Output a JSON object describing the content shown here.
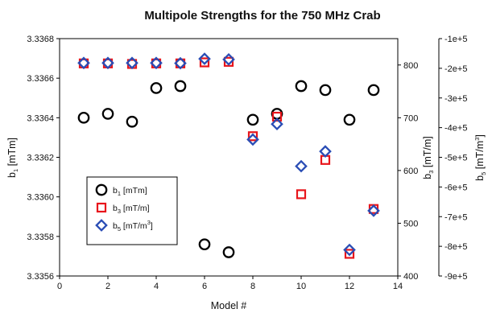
{
  "chart_data": {
    "type": "scatter",
    "title": "Multipole Strengths for the 750 MHz Crab",
    "xlabel": "Model #",
    "xlim": [
      0,
      14
    ],
    "xticks": [
      "0",
      "2",
      "4",
      "6",
      "8",
      "10",
      "12",
      "14"
    ],
    "grid": false,
    "legend_position": "lower-left",
    "axes": {
      "left": {
        "label_main": "b",
        "label_sub": "1",
        "label_unit": " [mTm]",
        "lim": [
          3.3356,
          3.3368
        ],
        "ticks": [
          "3.3356",
          "3.3358",
          "3.3360",
          "3.3362",
          "3.3364",
          "3.3366",
          "3.3368"
        ]
      },
      "right_inner": {
        "label_main": "b",
        "label_sub": "3",
        "label_unit": " [mT/m]",
        "lim": [
          400,
          850
        ],
        "ticks": [
          "400",
          "500",
          "600",
          "700",
          "800"
        ]
      },
      "right_outer": {
        "label_main": "b",
        "label_sub": "5",
        "label_unit": " [mT/m",
        "label_sup": "3",
        "label_end": "]",
        "lim": [
          -900000,
          -100000
        ],
        "ticks": [
          "-1e+5",
          "-2e+5",
          "-3e+5",
          "-4e+5",
          "-5e+5",
          "-6e+5",
          "-7e+5",
          "-8e+5",
          "-9e+5"
        ],
        "tick_values": [
          -100000,
          -200000,
          -300000,
          -400000,
          -500000,
          -600000,
          -700000,
          -800000,
          -900000
        ]
      }
    },
    "series": [
      {
        "name_main": "b",
        "name_sub": "1",
        "name_unit": " [mTm]",
        "axis": "left",
        "marker": "circle",
        "color": "#000000",
        "x": [
          1,
          2,
          3,
          4,
          5,
          6,
          7,
          8,
          9,
          10,
          11,
          12,
          13
        ],
        "y": [
          3.3364,
          3.33642,
          3.33638,
          3.33655,
          3.33656,
          3.33576,
          3.33572,
          3.33639,
          3.33642,
          3.33656,
          3.33654,
          3.33639,
          3.33654
        ]
      },
      {
        "name_main": "b",
        "name_sub": "3",
        "name_unit": " [mT/m]",
        "axis": "right_inner",
        "marker": "square",
        "color": "#e8151b",
        "x": [
          1,
          2,
          3,
          4,
          5,
          6,
          7,
          8,
          9,
          10,
          11,
          12,
          13
        ],
        "y": [
          803,
          803,
          802,
          803,
          803,
          805,
          806,
          665,
          702,
          555,
          620,
          442,
          527
        ]
      },
      {
        "name_main": "b",
        "name_sub": "5",
        "name_unit": " [mT/m",
        "name_sup": "3",
        "name_end": "]",
        "axis": "right_outer",
        "marker": "diamond",
        "color": "#2a4db5",
        "x": [
          1,
          2,
          3,
          4,
          5,
          6,
          7,
          8,
          9,
          10,
          11,
          12,
          13
        ],
        "y": [
          -182000,
          -182000,
          -182000,
          -182000,
          -183000,
          -168000,
          -170000,
          -440000,
          -388000,
          -530000,
          -480000,
          -812000,
          -680000
        ]
      }
    ]
  }
}
